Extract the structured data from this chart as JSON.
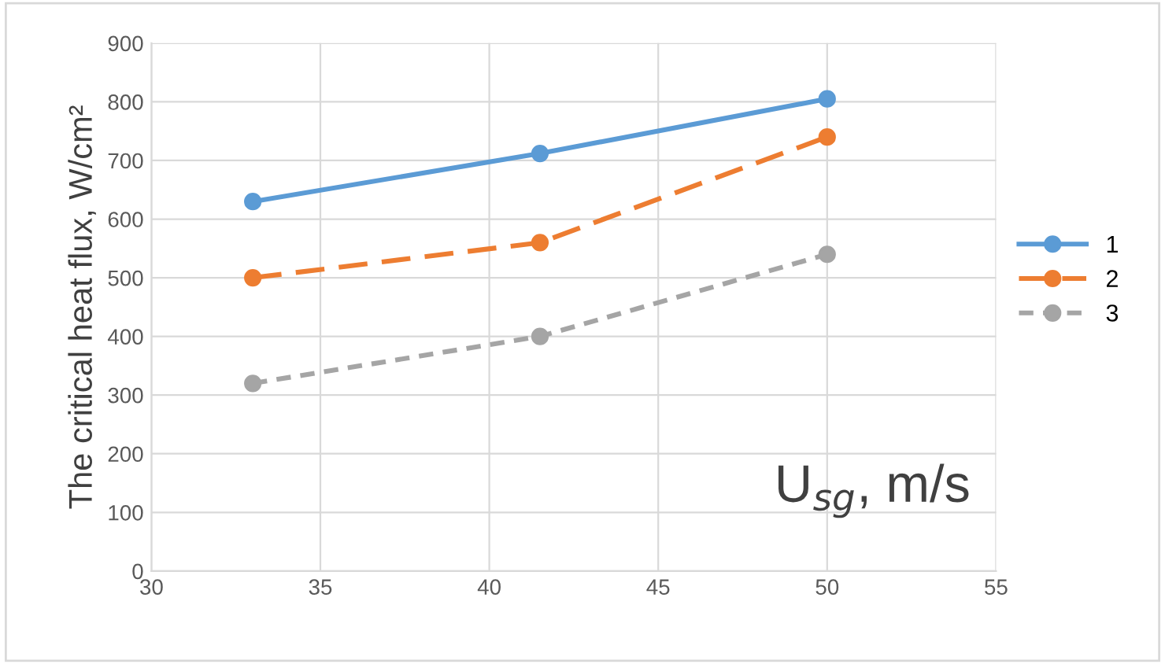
{
  "chart_data": {
    "type": "line",
    "x": [
      33,
      41.5,
      50
    ],
    "series": [
      {
        "name": "1",
        "color": "#5b9bd5",
        "values": [
          630,
          712,
          805
        ],
        "line_style": "solid"
      },
      {
        "name": "2",
        "color": "#ed7d31",
        "values": [
          500,
          560,
          740
        ],
        "line_style": "dashed"
      },
      {
        "name": "3",
        "color": "#a5a5a5",
        "values": [
          320,
          400,
          540
        ],
        "line_style": "dotted"
      }
    ],
    "xlabel": "U$_{sg}$, m/s",
    "ylabel": "The critical heat flux, W/cm²",
    "xlim": [
      30,
      55
    ],
    "xticks": [
      30,
      35,
      40,
      45,
      50,
      55
    ],
    "ylim": [
      0,
      900
    ],
    "yticks": [
      0,
      100,
      200,
      300,
      400,
      500,
      600,
      700,
      800,
      900
    ],
    "grid": true,
    "legend": "right",
    "marker": "circle"
  }
}
